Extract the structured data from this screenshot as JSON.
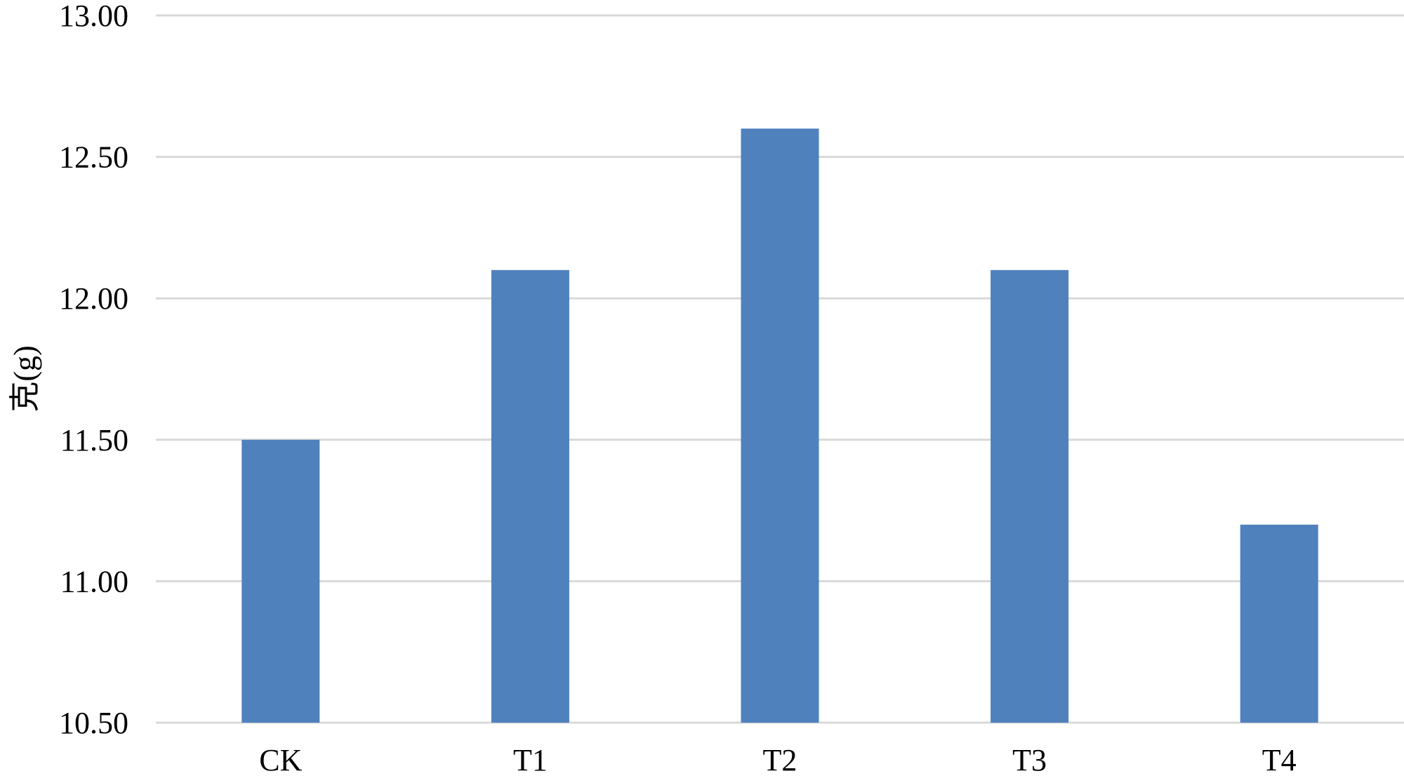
{
  "chart_data": {
    "type": "bar",
    "categories": [
      "CK",
      "T1",
      "T2",
      "T3",
      "T4"
    ],
    "values": [
      11.5,
      12.1,
      12.6,
      12.1,
      11.2
    ],
    "title": "",
    "xlabel": "",
    "ylabel": "克(g)",
    "ylim": [
      10.5,
      13.0
    ],
    "yticks": [
      "10.50",
      "11.00",
      "11.50",
      "12.00",
      "12.50",
      "13.00"
    ],
    "grid": true,
    "legend": "none",
    "bar_color": "#4f81bd",
    "grid_color": "#d9d9d9"
  }
}
